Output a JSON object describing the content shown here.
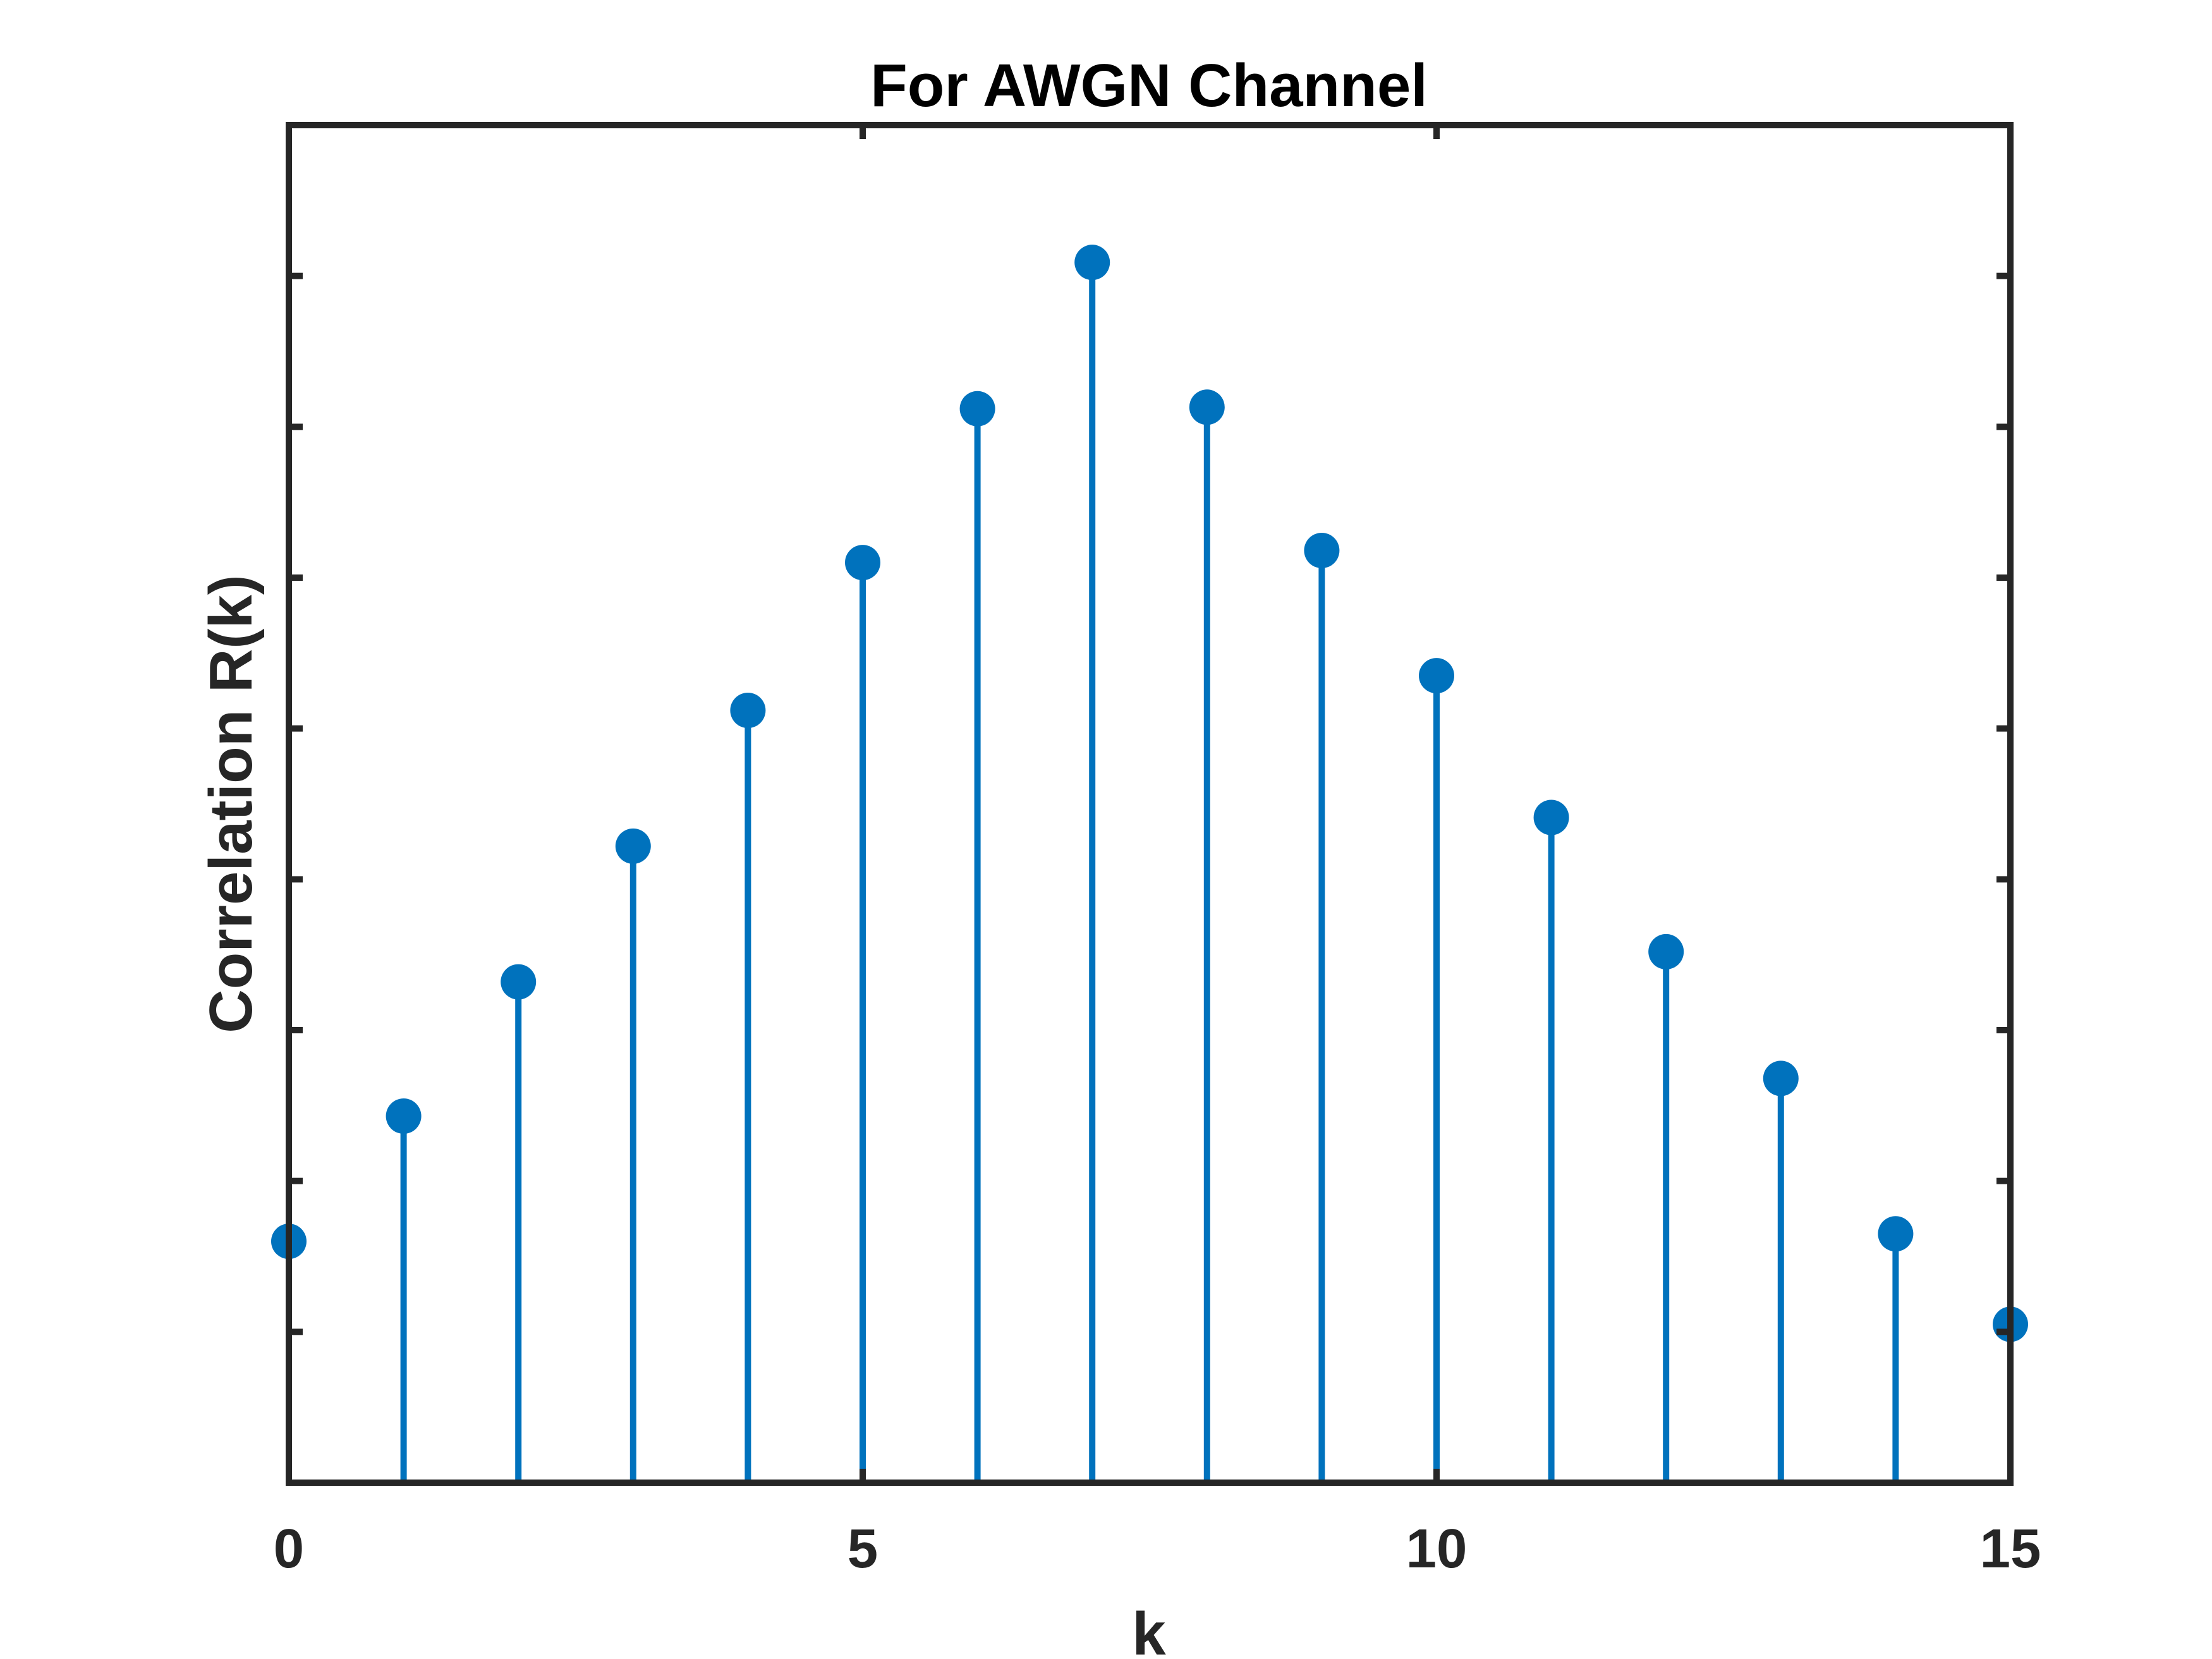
{
  "chart_data": {
    "type": "stem",
    "title": "For AWGN Channel",
    "xlabel": "k",
    "ylabel": "Correlation R(k)",
    "xlim": [
      0,
      15
    ],
    "ylim": [
      0,
      9
    ],
    "x": [
      0,
      1,
      2,
      3,
      4,
      5,
      6,
      7,
      8,
      9,
      10,
      11,
      12,
      13,
      14,
      15
    ],
    "values": [
      1.6,
      2.43,
      3.32,
      4.22,
      5.12,
      6.1,
      7.12,
      8.09,
      7.13,
      6.18,
      5.35,
      4.41,
      3.52,
      2.68,
      1.65,
      1.05
    ],
    "x_ticks": [
      0,
      5,
      10,
      15
    ],
    "x_tick_labels": [
      "0",
      "5",
      "10",
      "15"
    ],
    "y_ticks": [
      1,
      2,
      3,
      4,
      5,
      6,
      7,
      8
    ],
    "y_tick_labels": [],
    "series_color": "#0072BD",
    "axis_color": "#262626",
    "grid": false,
    "legend": false
  }
}
